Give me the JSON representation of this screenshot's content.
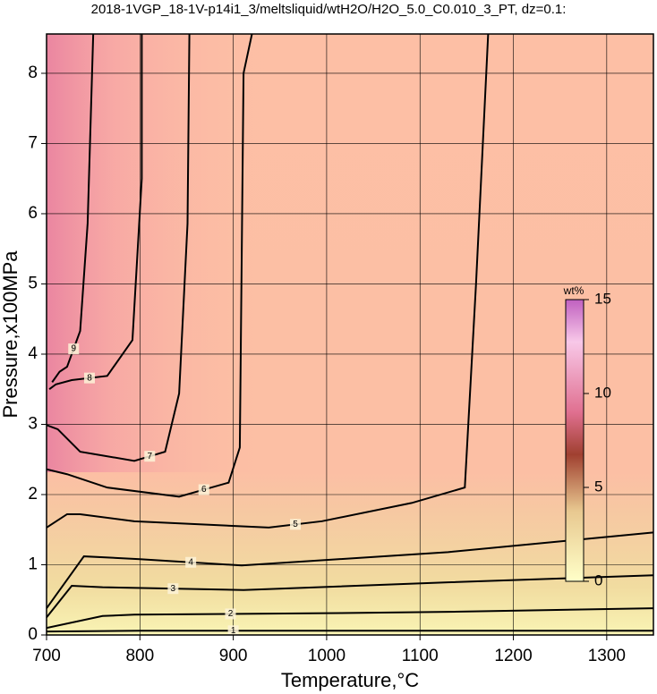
{
  "chart_data": {
    "type": "contour",
    "title": "2018-1VGP_18-1V-p14i1_3/meltsliquid/wtH2O/H2O_5.0_C0.010_3_PT, dz=0.1:",
    "x_label": "Temperature,°C",
    "y_label": "Pressure,x100MPa",
    "xlim": [
      700,
      1350
    ],
    "ylim": [
      0,
      8.56
    ],
    "xticks": [
      700,
      800,
      900,
      1000,
      1100,
      1200,
      1300
    ],
    "yticks": [
      0,
      1,
      2,
      3,
      4,
      5,
      6,
      7,
      8
    ],
    "grid": true,
    "contours": [
      {
        "level": 1,
        "x": [
          700,
          800,
          1000,
          1200,
          1350
        ],
        "y": [
          0.05,
          0.06,
          0.06,
          0.06,
          0.06
        ]
      },
      {
        "level": 2,
        "x": [
          700,
          760,
          794,
          1000,
          1130,
          1350
        ],
        "y": [
          0.1,
          0.27,
          0.29,
          0.31,
          0.33,
          0.38
        ]
      },
      {
        "level": 3,
        "x": [
          700,
          727,
          760,
          911,
          1130,
          1350
        ],
        "y": [
          0.25,
          0.7,
          0.68,
          0.64,
          0.75,
          0.85
        ]
      },
      {
        "level": 4,
        "x": [
          700,
          740,
          800,
          909,
          1130,
          1350
        ],
        "y": [
          0.38,
          1.12,
          1.08,
          0.99,
          1.18,
          1.46
        ]
      },
      {
        "level": 5,
        "x": [
          700,
          722,
          736,
          794,
          938,
          995,
          1091,
          1148,
          1160,
          1173
        ],
        "y": [
          1.53,
          1.72,
          1.72,
          1.62,
          1.53,
          1.62,
          1.88,
          2.1,
          5.0,
          8.56
        ]
      },
      {
        "level": 6,
        "x": [
          700,
          722,
          765,
          842,
          895,
          907,
          911,
          920
        ],
        "y": [
          2.36,
          2.29,
          2.1,
          1.97,
          2.17,
          2.67,
          8.0,
          8.56
        ]
      },
      {
        "level": 7,
        "x": [
          700,
          712,
          736,
          794,
          827,
          842,
          851,
          853
        ],
        "y": [
          2.99,
          2.93,
          2.61,
          2.48,
          2.61,
          3.44,
          5.86,
          8.56
        ]
      },
      {
        "level": 8,
        "x": [
          703,
          710,
          727,
          765,
          792,
          802,
          802
        ],
        "y": [
          3.5,
          3.57,
          3.63,
          3.69,
          4.2,
          6.5,
          8.56
        ]
      },
      {
        "level": 9,
        "x": [
          706,
          714,
          722,
          736,
          744,
          750
        ],
        "y": [
          3.6,
          3.75,
          3.82,
          4.33,
          5.86,
          8.56
        ]
      }
    ],
    "colorbar": {
      "label": "wt%",
      "lim": [
        0,
        15
      ],
      "ticks": [
        0,
        5,
        10,
        15
      ]
    }
  }
}
